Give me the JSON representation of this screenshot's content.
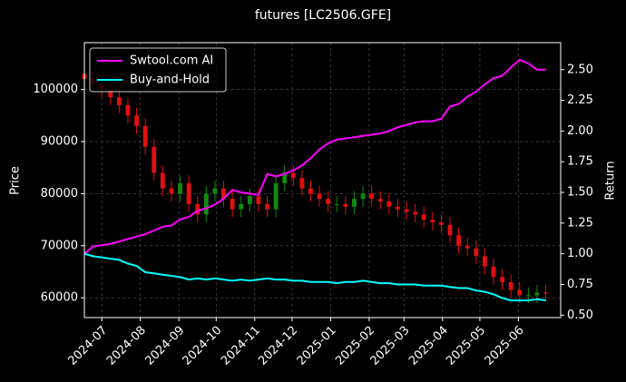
{
  "chart_data": {
    "type": "candlestick",
    "title": "futures [LC2506.GFE]",
    "y_label": "Price",
    "y2_label": "Return",
    "x": [
      "2024-06-17",
      "2024-06-24",
      "2024-07-01",
      "2024-07-08",
      "2024-07-15",
      "2024-07-22",
      "2024-07-29",
      "2024-08-05",
      "2024-08-12",
      "2024-08-19",
      "2024-08-26",
      "2024-09-02",
      "2024-09-09",
      "2024-09-16",
      "2024-09-23",
      "2024-09-30",
      "2024-10-07",
      "2024-10-14",
      "2024-10-21",
      "2024-10-28",
      "2024-11-04",
      "2024-11-11",
      "2024-11-18",
      "2024-11-25",
      "2024-12-02",
      "2024-12-09",
      "2024-12-16",
      "2024-12-23",
      "2024-12-30",
      "2025-01-06",
      "2025-01-13",
      "2025-01-20",
      "2025-01-27",
      "2025-02-03",
      "2025-02-10",
      "2025-02-17",
      "2025-02-24",
      "2025-03-03",
      "2025-03-10",
      "2025-03-17",
      "2025-03-24",
      "2025-03-31",
      "2025-04-07",
      "2025-04-14",
      "2025-04-21",
      "2025-04-28",
      "2025-05-05",
      "2025-05-12",
      "2025-05-19",
      "2025-05-26",
      "2025-06-02",
      "2025-06-09",
      "2025-06-16",
      "2025-06-23"
    ],
    "open": [
      103000,
      102000,
      101000,
      100000,
      98500,
      97000,
      95000,
      93000,
      89000,
      84000,
      81000,
      80000,
      82000,
      78000,
      76000,
      80000,
      81000,
      79000,
      77000,
      78000,
      79500,
      78000,
      77000,
      82000,
      84000,
      83000,
      81000,
      80000,
      79000,
      78000,
      78000,
      77500,
      79000,
      80000,
      79000,
      78500,
      77500,
      77000,
      76500,
      76000,
      75000,
      74500,
      74000,
      72000,
      70000,
      69500,
      68000,
      66000,
      64000,
      63000,
      61500,
      60500,
      60500,
      61000
    ],
    "high": [
      104500,
      103500,
      102500,
      101500,
      100000,
      98500,
      96500,
      94500,
      90500,
      85500,
      82500,
      83500,
      83500,
      79500,
      81500,
      82500,
      82500,
      80500,
      79500,
      81000,
      81000,
      79500,
      83500,
      85500,
      85500,
      84500,
      82500,
      81500,
      80500,
      79500,
      79500,
      80500,
      81500,
      81500,
      80500,
      80000,
      79000,
      78500,
      78000,
      77500,
      76500,
      76000,
      75500,
      73500,
      71500,
      71000,
      69500,
      67500,
      65500,
      64500,
      63000,
      62000,
      62500,
      62500
    ],
    "low": [
      100500,
      99500,
      98500,
      97000,
      95500,
      93500,
      91500,
      87500,
      82500,
      79500,
      78500,
      78500,
      76500,
      74500,
      74500,
      78500,
      77500,
      75500,
      75500,
      76500,
      76500,
      75500,
      75500,
      80500,
      81500,
      79500,
      78500,
      77500,
      76500,
      76500,
      76000,
      76000,
      77500,
      77500,
      77000,
      76000,
      75500,
      75000,
      74500,
      73500,
      73000,
      72500,
      70500,
      68500,
      68000,
      66500,
      64500,
      62500,
      61500,
      60000,
      59000,
      59000,
      59000,
      59300
    ],
    "close": [
      102000,
      101000,
      100000,
      98500,
      97000,
      95000,
      93000,
      89000,
      84000,
      81000,
      80000,
      82000,
      78000,
      76000,
      80000,
      81000,
      79000,
      77000,
      78000,
      79500,
      78000,
      77000,
      82000,
      84000,
      83000,
      81000,
      80000,
      79000,
      78000,
      78000,
      77500,
      79000,
      80000,
      79000,
      78500,
      77500,
      77000,
      76500,
      76000,
      75000,
      74500,
      74000,
      72000,
      70000,
      69500,
      68000,
      66000,
      64000,
      63000,
      61500,
      60500,
      60500,
      61000,
      60800
    ],
    "up_color": "#108a10",
    "down_color": "#e01010",
    "series": [
      {
        "name": "Swtool.com AI",
        "color": "#ff00ff",
        "axis": "y2",
        "values": [
          1.0,
          1.06,
          1.07,
          1.08,
          1.1,
          1.12,
          1.14,
          1.16,
          1.19,
          1.22,
          1.23,
          1.28,
          1.3,
          1.35,
          1.37,
          1.4,
          1.45,
          1.52,
          1.5,
          1.49,
          1.48,
          1.65,
          1.63,
          1.65,
          1.68,
          1.72,
          1.78,
          1.85,
          1.9,
          1.93,
          1.94,
          1.95,
          1.96,
          1.97,
          1.98,
          2.0,
          2.03,
          2.05,
          2.07,
          2.08,
          2.08,
          2.1,
          2.2,
          2.22,
          2.28,
          2.32,
          2.38,
          2.43,
          2.45,
          2.52,
          2.58,
          2.55,
          2.5,
          2.5
        ]
      },
      {
        "name": "Buy-and-Hold",
        "color": "#00ffff",
        "axis": "y2",
        "values": [
          1.0,
          0.98,
          0.97,
          0.96,
          0.95,
          0.92,
          0.9,
          0.85,
          0.84,
          0.83,
          0.82,
          0.81,
          0.79,
          0.8,
          0.79,
          0.8,
          0.79,
          0.78,
          0.79,
          0.78,
          0.79,
          0.8,
          0.79,
          0.79,
          0.78,
          0.78,
          0.77,
          0.77,
          0.77,
          0.76,
          0.77,
          0.77,
          0.78,
          0.77,
          0.76,
          0.76,
          0.75,
          0.75,
          0.75,
          0.74,
          0.74,
          0.74,
          0.73,
          0.72,
          0.72,
          0.7,
          0.69,
          0.67,
          0.64,
          0.62,
          0.62,
          0.62,
          0.63,
          0.62
        ]
      }
    ],
    "xlim": [
      "2024-06-17",
      "2025-07-05"
    ],
    "xticks": [
      {
        "value": "2024-07-01",
        "label": "2024-07"
      },
      {
        "value": "2024-08-01",
        "label": "2024-08"
      },
      {
        "value": "2024-09-01",
        "label": "2024-09"
      },
      {
        "value": "2024-10-01",
        "label": "2024-10"
      },
      {
        "value": "2024-11-01",
        "label": "2024-11"
      },
      {
        "value": "2024-12-01",
        "label": "2024-12"
      },
      {
        "value": "2025-01-01",
        "label": "2025-01"
      },
      {
        "value": "2025-02-01",
        "label": "2025-02"
      },
      {
        "value": "2025-03-01",
        "label": "2025-03"
      },
      {
        "value": "2025-04-01",
        "label": "2025-04"
      },
      {
        "value": "2025-05-01",
        "label": "2025-05"
      },
      {
        "value": "2025-06-01",
        "label": "2025-06"
      }
    ],
    "ylim": [
      56200,
      109000
    ],
    "yticks": [
      60000,
      70000,
      80000,
      90000,
      100000
    ],
    "y2lim": [
      0.48,
      2.72
    ],
    "y2ticks": [
      {
        "value": 0.5,
        "label": "0.50"
      },
      0.75,
      {
        "value": 1,
        "label": "1.00"
      },
      1.25,
      {
        "value": 1.5,
        "label": "1.50"
      },
      1.75,
      {
        "value": 2,
        "label": "2.00"
      },
      2.25,
      {
        "value": 2.5,
        "label": "2.50"
      }
    ],
    "grid": true,
    "legend": "upper left"
  }
}
